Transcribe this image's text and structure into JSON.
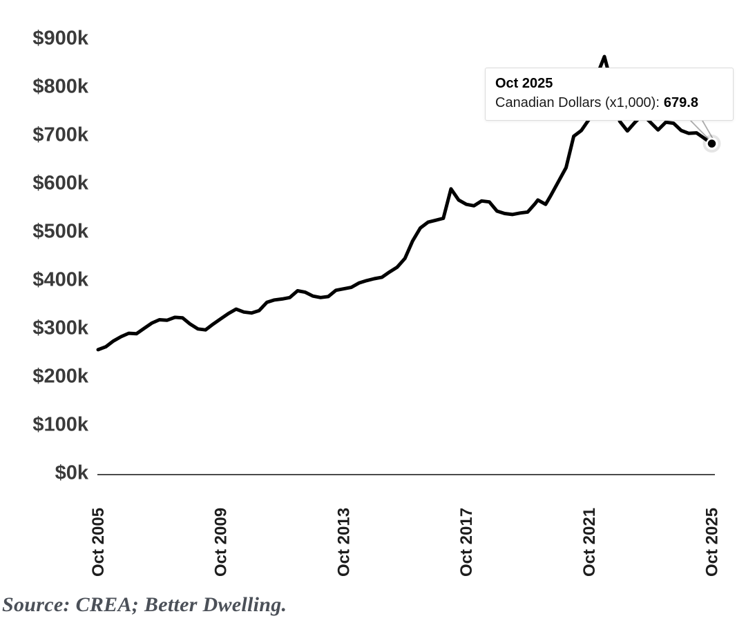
{
  "chart_data": {
    "type": "line",
    "title": "",
    "xlabel": "",
    "ylabel": "",
    "unit": "Canadian Dollars (x1,000)",
    "x_unit": "months since Oct 2005",
    "ylim": [
      0,
      900
    ],
    "xlim_months": [
      0,
      240
    ],
    "grid": false,
    "legend": false,
    "y_ticks": [
      {
        "v": 0,
        "label": "$0k"
      },
      {
        "v": 100,
        "label": "$100k"
      },
      {
        "v": 200,
        "label": "$200k"
      },
      {
        "v": 300,
        "label": "$300k"
      },
      {
        "v": 400,
        "label": "$400k"
      },
      {
        "v": 500,
        "label": "$500k"
      },
      {
        "v": 600,
        "label": "$600k"
      },
      {
        "v": 700,
        "label": "$700k"
      },
      {
        "v": 800,
        "label": "$800k"
      },
      {
        "v": 900,
        "label": "$900k"
      }
    ],
    "x_ticks": [
      {
        "m": 0,
        "label": "Oct 2005"
      },
      {
        "m": 48,
        "label": "Oct 2009"
      },
      {
        "m": 96,
        "label": "Oct 2013"
      },
      {
        "m": 144,
        "label": "Oct 2017"
      },
      {
        "m": 192,
        "label": "Oct 2021"
      },
      {
        "m": 240,
        "label": "Oct 2025"
      }
    ],
    "series": [
      {
        "name": "Canadian Dollars (x1,000)",
        "points": [
          [
            0,
            253
          ],
          [
            3,
            259
          ],
          [
            6,
            271
          ],
          [
            9,
            280
          ],
          [
            12,
            287
          ],
          [
            15,
            286
          ],
          [
            18,
            297
          ],
          [
            21,
            308
          ],
          [
            24,
            315
          ],
          [
            27,
            314
          ],
          [
            30,
            320
          ],
          [
            33,
            319
          ],
          [
            36,
            306
          ],
          [
            39,
            296
          ],
          [
            42,
            294
          ],
          [
            45,
            306
          ],
          [
            48,
            317
          ],
          [
            51,
            328
          ],
          [
            54,
            337
          ],
          [
            57,
            331
          ],
          [
            60,
            329
          ],
          [
            63,
            334
          ],
          [
            66,
            351
          ],
          [
            69,
            356
          ],
          [
            72,
            358
          ],
          [
            75,
            361
          ],
          [
            78,
            375
          ],
          [
            81,
            372
          ],
          [
            84,
            364
          ],
          [
            87,
            361
          ],
          [
            90,
            363
          ],
          [
            93,
            376
          ],
          [
            96,
            379
          ],
          [
            99,
            382
          ],
          [
            102,
            391
          ],
          [
            105,
            396
          ],
          [
            108,
            400
          ],
          [
            111,
            403
          ],
          [
            114,
            414
          ],
          [
            117,
            424
          ],
          [
            120,
            442
          ],
          [
            123,
            478
          ],
          [
            126,
            505
          ],
          [
            129,
            517
          ],
          [
            132,
            521
          ],
          [
            135,
            525
          ],
          [
            138,
            586
          ],
          [
            141,
            563
          ],
          [
            144,
            554
          ],
          [
            147,
            551
          ],
          [
            150,
            561
          ],
          [
            153,
            559
          ],
          [
            156,
            540
          ],
          [
            159,
            535
          ],
          [
            162,
            533
          ],
          [
            165,
            536
          ],
          [
            168,
            538
          ],
          [
            171,
            556
          ],
          [
            172,
            563
          ],
          [
            175,
            554
          ],
          [
            177,
            572
          ],
          [
            180,
            601
          ],
          [
            183,
            630
          ],
          [
            186,
            695
          ],
          [
            189,
            707
          ],
          [
            192,
            730
          ],
          [
            194,
            795
          ],
          [
            196,
            833
          ],
          [
            198,
            860
          ],
          [
            200,
            820
          ],
          [
            202,
            772
          ],
          [
            204,
            726
          ],
          [
            207,
            706
          ],
          [
            210,
            724
          ],
          [
            213,
            740
          ],
          [
            216,
            724
          ],
          [
            219,
            708
          ],
          [
            222,
            724
          ],
          [
            225,
            722
          ],
          [
            228,
            707
          ],
          [
            231,
            701
          ],
          [
            234,
            702
          ],
          [
            237,
            691
          ],
          [
            240,
            679.8
          ]
        ]
      }
    ],
    "highlight_point": {
      "m": 240,
      "v": 679.8,
      "date": "Oct 2025"
    }
  },
  "tooltip": {
    "title": "Oct 2025",
    "label": "Canadian Dollars (x1,000):",
    "value": "679.8"
  },
  "source_note": "Source: CREA; Better Dwelling.",
  "colors": {
    "line": "#000000",
    "axis_line": "#4a4a4a",
    "y_tick_label": "#3a3a3a",
    "x_tick_label": "#1d1d1d",
    "marker_fill": "#000000",
    "marker_ring": "#ffffff",
    "callout_stem": "#adadad",
    "tooltip_border": "#dcdcdc",
    "tooltip_bg": "#ffffff",
    "source_text": "#4b5058"
  }
}
